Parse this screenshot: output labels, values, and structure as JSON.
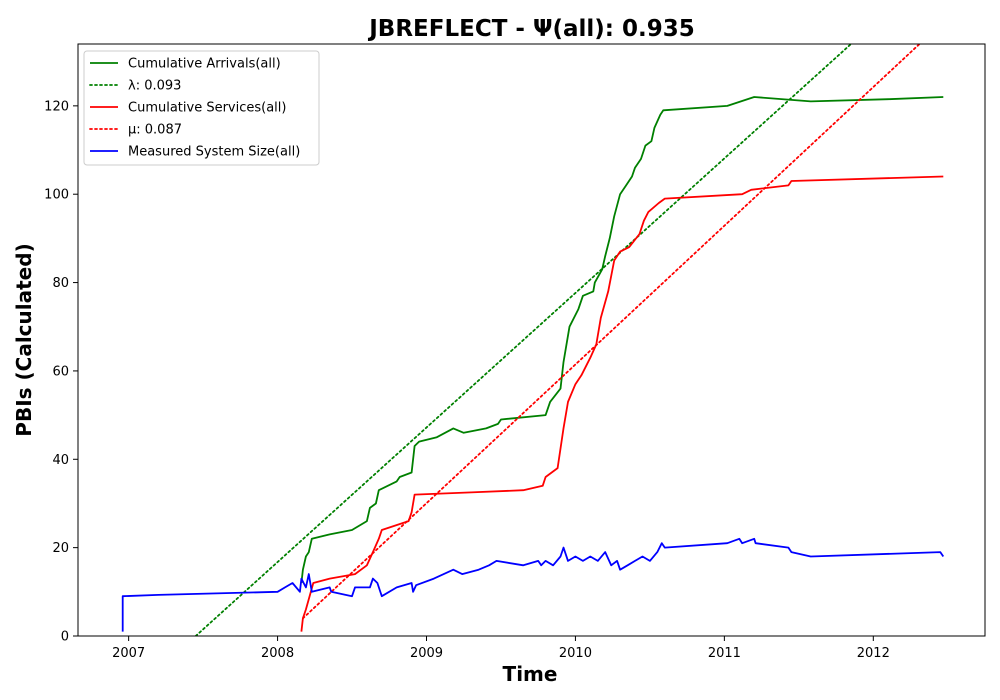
{
  "chart_data": {
    "type": "line",
    "title": "JBREFLECT -  Ψ(all): 0.935",
    "xlabel": "Time",
    "ylabel": "PBIs (Calculated)",
    "xlim": [
      2006.66,
      2012.75
    ],
    "ylim": [
      0,
      134
    ],
    "x_ticks": [
      2007,
      2008,
      2009,
      2010,
      2011,
      2012
    ],
    "x_tick_labels": [
      "2007",
      "2008",
      "2009",
      "2010",
      "2011",
      "2012"
    ],
    "y_ticks": [
      0,
      20,
      40,
      60,
      80,
      100,
      120
    ],
    "legend_position": "top-left",
    "series": [
      {
        "name": "Cumulative Arrivals(all)",
        "color": "#008000",
        "style": "solid",
        "points": [
          [
            2008.16,
            12
          ],
          [
            2008.17,
            15
          ],
          [
            2008.19,
            18
          ],
          [
            2008.21,
            19
          ],
          [
            2008.23,
            22
          ],
          [
            2008.35,
            23
          ],
          [
            2008.5,
            24
          ],
          [
            2008.6,
            26
          ],
          [
            2008.62,
            29
          ],
          [
            2008.66,
            30
          ],
          [
            2008.68,
            33
          ],
          [
            2008.8,
            35
          ],
          [
            2008.82,
            36
          ],
          [
            2008.9,
            37
          ],
          [
            2008.92,
            43
          ],
          [
            2008.95,
            44
          ],
          [
            2009.07,
            45
          ],
          [
            2009.18,
            47
          ],
          [
            2009.25,
            46
          ],
          [
            2009.4,
            47
          ],
          [
            2009.48,
            48
          ],
          [
            2009.5,
            49
          ],
          [
            2009.8,
            50
          ],
          [
            2009.83,
            53
          ],
          [
            2009.9,
            56
          ],
          [
            2009.92,
            62
          ],
          [
            2009.96,
            70
          ],
          [
            2010.02,
            74
          ],
          [
            2010.05,
            77
          ],
          [
            2010.12,
            78
          ],
          [
            2010.13,
            80
          ],
          [
            2010.18,
            83
          ],
          [
            2010.2,
            86
          ],
          [
            2010.23,
            90
          ],
          [
            2010.26,
            95
          ],
          [
            2010.3,
            100
          ],
          [
            2010.34,
            102
          ],
          [
            2010.38,
            104
          ],
          [
            2010.4,
            106
          ],
          [
            2010.44,
            108
          ],
          [
            2010.47,
            111
          ],
          [
            2010.51,
            112
          ],
          [
            2010.53,
            115
          ],
          [
            2010.57,
            118
          ],
          [
            2010.59,
            119
          ],
          [
            2011.02,
            120
          ],
          [
            2011.2,
            122
          ],
          [
            2011.58,
            121
          ],
          [
            2012.1,
            121.5
          ],
          [
            2012.47,
            122
          ]
        ]
      },
      {
        "name": "λ: 0.093",
        "color": "#008000",
        "style": "dotted",
        "points": [
          [
            2007.45,
            0
          ],
          [
            2011.85,
            134
          ]
        ]
      },
      {
        "name": "Cumulative Services(all)",
        "color": "#ff0000",
        "style": "solid",
        "points": [
          [
            2008.16,
            1
          ],
          [
            2008.17,
            4
          ],
          [
            2008.19,
            6
          ],
          [
            2008.24,
            12
          ],
          [
            2008.35,
            13
          ],
          [
            2008.52,
            14
          ],
          [
            2008.6,
            16
          ],
          [
            2008.64,
            19
          ],
          [
            2008.68,
            22
          ],
          [
            2008.7,
            24
          ],
          [
            2008.88,
            26
          ],
          [
            2008.9,
            28
          ],
          [
            2008.92,
            32
          ],
          [
            2009.3,
            32.5
          ],
          [
            2009.65,
            33
          ],
          [
            2009.78,
            34
          ],
          [
            2009.8,
            36
          ],
          [
            2009.88,
            38
          ],
          [
            2009.92,
            47
          ],
          [
            2009.95,
            53
          ],
          [
            2010,
            57
          ],
          [
            2010.04,
            59
          ],
          [
            2010.1,
            63
          ],
          [
            2010.14,
            66
          ],
          [
            2010.17,
            72
          ],
          [
            2010.22,
            78
          ],
          [
            2010.26,
            85
          ],
          [
            2010.3,
            87
          ],
          [
            2010.36,
            88
          ],
          [
            2010.43,
            91
          ],
          [
            2010.46,
            94
          ],
          [
            2010.49,
            96
          ],
          [
            2010.56,
            98
          ],
          [
            2010.6,
            99
          ],
          [
            2011.12,
            100
          ],
          [
            2011.18,
            101
          ],
          [
            2011.43,
            102
          ],
          [
            2011.45,
            103
          ],
          [
            2012.47,
            104
          ]
        ]
      },
      {
        "name": "μ: 0.087",
        "color": "#ff0000",
        "style": "dotted",
        "points": [
          [
            2008.17,
            4
          ],
          [
            2012.31,
            134
          ]
        ]
      },
      {
        "name": "Measured System Size(all)",
        "color": "#0000ff",
        "style": "solid",
        "points": [
          [
            2006.96,
            1
          ],
          [
            2006.96,
            9
          ],
          [
            2007.2,
            9.3
          ],
          [
            2008,
            10
          ],
          [
            2008.05,
            11
          ],
          [
            2008.1,
            12
          ],
          [
            2008.15,
            10
          ],
          [
            2008.16,
            13
          ],
          [
            2008.19,
            11
          ],
          [
            2008.21,
            14
          ],
          [
            2008.23,
            10
          ],
          [
            2008.35,
            11
          ],
          [
            2008.36,
            10
          ],
          [
            2008.5,
            9
          ],
          [
            2008.52,
            11
          ],
          [
            2008.62,
            11
          ],
          [
            2008.64,
            13
          ],
          [
            2008.67,
            12
          ],
          [
            2008.7,
            9
          ],
          [
            2008.8,
            11
          ],
          [
            2008.9,
            12
          ],
          [
            2008.91,
            10
          ],
          [
            2008.93,
            11.5
          ],
          [
            2009.05,
            13
          ],
          [
            2009.18,
            15
          ],
          [
            2009.24,
            14
          ],
          [
            2009.35,
            15
          ],
          [
            2009.42,
            16
          ],
          [
            2009.47,
            17
          ],
          [
            2009.65,
            16
          ],
          [
            2009.75,
            17
          ],
          [
            2009.77,
            16
          ],
          [
            2009.8,
            17
          ],
          [
            2009.85,
            16
          ],
          [
            2009.9,
            18
          ],
          [
            2009.92,
            20
          ],
          [
            2009.95,
            17
          ],
          [
            2010,
            18
          ],
          [
            2010.05,
            17
          ],
          [
            2010.1,
            18
          ],
          [
            2010.15,
            17
          ],
          [
            2010.2,
            19
          ],
          [
            2010.24,
            16
          ],
          [
            2010.28,
            17
          ],
          [
            2010.3,
            15
          ],
          [
            2010.35,
            16
          ],
          [
            2010.4,
            17
          ],
          [
            2010.45,
            18
          ],
          [
            2010.5,
            17
          ],
          [
            2010.55,
            19
          ],
          [
            2010.58,
            21
          ],
          [
            2010.6,
            20
          ],
          [
            2011.02,
            21
          ],
          [
            2011.1,
            22
          ],
          [
            2011.12,
            21
          ],
          [
            2011.2,
            22
          ],
          [
            2011.21,
            21
          ],
          [
            2011.43,
            20
          ],
          [
            2011.45,
            19
          ],
          [
            2011.58,
            18
          ],
          [
            2012.45,
            19
          ],
          [
            2012.47,
            18
          ]
        ]
      }
    ]
  }
}
